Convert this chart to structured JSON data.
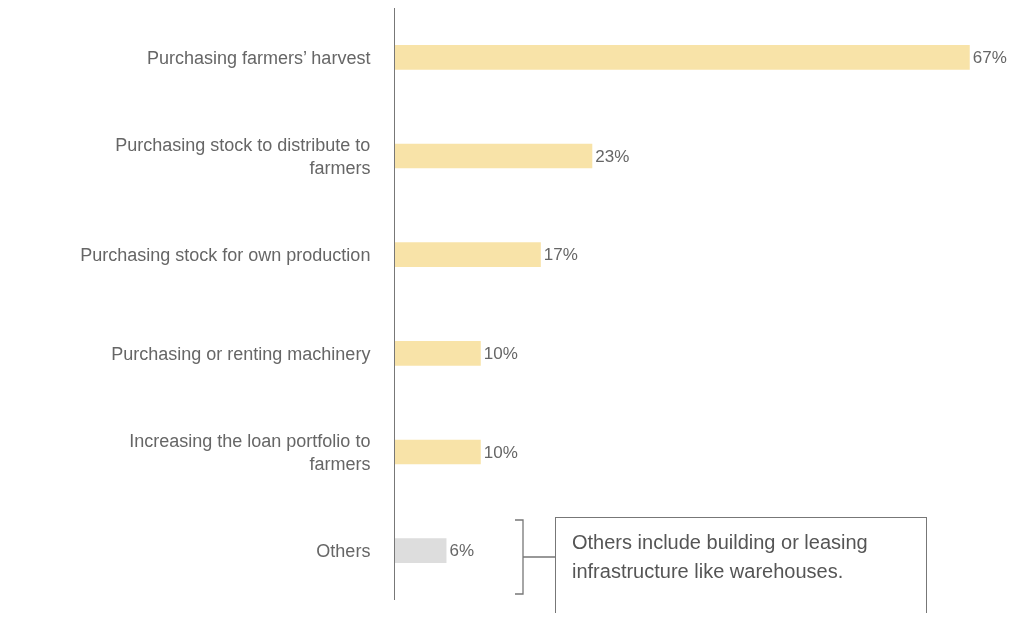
{
  "chart_data": {
    "type": "bar",
    "orientation": "horizontal",
    "categories": [
      "Purchasing farmers’ harvest",
      "Purchasing stock to distribute to farmers",
      "Purchasing stock for own production",
      "Purchasing or renting machinery",
      "Increasing the loan portfolio to farmers",
      "Others"
    ],
    "values": [
      67,
      23,
      17,
      10,
      10,
      6
    ],
    "colors": [
      "#f8e3a8",
      "#f8e3a8",
      "#f8e3a8",
      "#f8e3a8",
      "#f8e3a8",
      "#dddddd"
    ],
    "value_labels": [
      "67%",
      "23%",
      "17%",
      "10%",
      "10%",
      "6%"
    ],
    "tick_labels": "y",
    "annotations": [
      "Others include building or leasing infrastructure like warehouses."
    ]
  }
}
